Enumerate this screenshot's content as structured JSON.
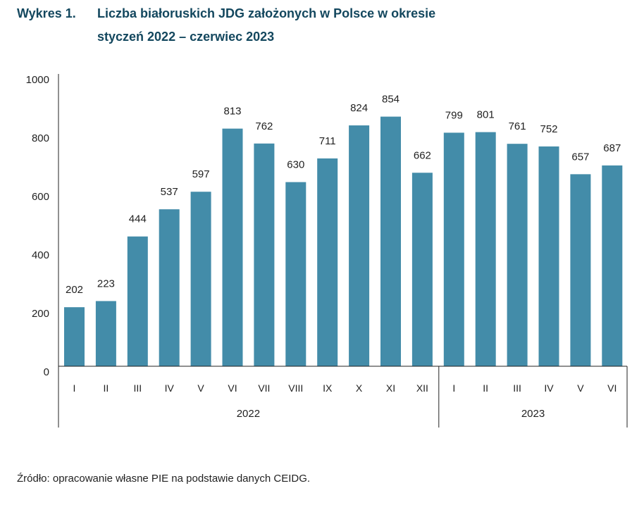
{
  "figure_label": "Wykres 1.",
  "title_line1": "Liczba białoruskich JDG założonych w Polsce w okresie",
  "title_line2": "styczeń 2022 – czerwiec 2023",
  "source": "Źródło: opracowanie własne PIE na podstawie danych CEIDG.",
  "colors": {
    "bar": "#438ca9",
    "title": "#13475e"
  },
  "chart_data": {
    "type": "bar",
    "title": "Liczba białoruskich JDG założonych w Polsce w okresie styczeń 2022 – czerwiec 2023",
    "categories": [
      "I",
      "II",
      "III",
      "IV",
      "V",
      "VI",
      "VII",
      "VIII",
      "IX",
      "X",
      "XI",
      "XII",
      "I",
      "II",
      "III",
      "IV",
      "V",
      "VI"
    ],
    "groups": [
      {
        "label": "2022",
        "count": 12
      },
      {
        "label": "2023",
        "count": 6
      }
    ],
    "values": [
      202,
      223,
      444,
      537,
      597,
      813,
      762,
      630,
      711,
      824,
      854,
      662,
      799,
      801,
      761,
      752,
      657,
      687
    ],
    "yticks": [
      0,
      200,
      400,
      600,
      800,
      1000
    ],
    "ylim": [
      0,
      1000
    ],
    "xlabel": "",
    "ylabel": "",
    "grid": false
  }
}
